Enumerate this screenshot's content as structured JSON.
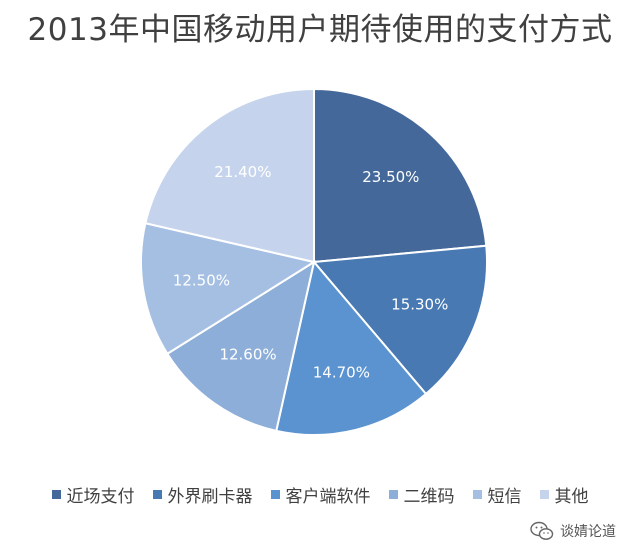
{
  "chart_data": {
    "type": "pie",
    "title": "2013年中国移动用户期待使用的支付方式",
    "slices": [
      {
        "label": "近场支付",
        "value": 23.5,
        "data_label": "23.50%",
        "color": "#44689a"
      },
      {
        "label": "外界刷卡器",
        "value": 15.3,
        "data_label": "15.30%",
        "color": "#4879b3"
      },
      {
        "label": "客户端软件",
        "value": 14.7,
        "data_label": "14.70%",
        "color": "#5b93d0"
      },
      {
        "label": "二维码",
        "value": 12.6,
        "data_label": "12.60%",
        "color": "#8daed9"
      },
      {
        "label": "短信",
        "value": 12.5,
        "data_label": "12.50%",
        "color": "#a5bfe3"
      },
      {
        "label": "其他",
        "value": 21.4,
        "data_label": "21.40%",
        "color": "#c5d4ec"
      }
    ],
    "legend_position": "bottom",
    "start_angle": "top",
    "direction": "clockwise"
  },
  "watermark": {
    "text": "谈婧论道",
    "icon": "wechat-icon"
  }
}
